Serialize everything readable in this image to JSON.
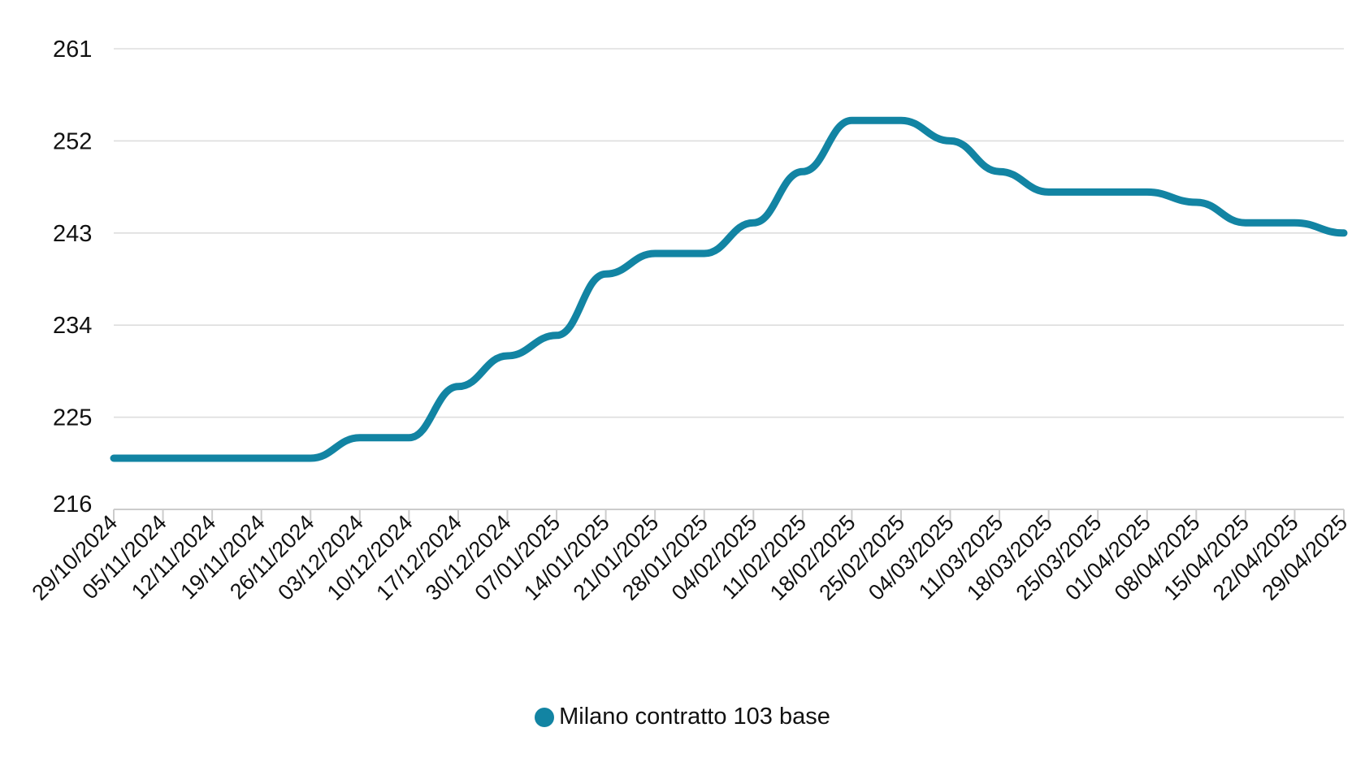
{
  "colors": {
    "series": "#1284a3"
  },
  "legend": {
    "label": "Milano contratto 103 base",
    "placement": "bottom-center"
  },
  "chart_data": {
    "type": "line",
    "title": "",
    "xlabel": "",
    "ylabel": "",
    "ylim": [
      216,
      261
    ],
    "yticks": [
      "261",
      "252",
      "243",
      "234",
      "225",
      "216"
    ],
    "grid": true,
    "categories": [
      "29/10/2024",
      "05/11/2024",
      "12/11/2024",
      "19/11/2024",
      "26/11/2024",
      "03/12/2024",
      "10/12/2024",
      "17/12/2024",
      "30/12/2024",
      "07/01/2025",
      "14/01/2025",
      "21/01/2025",
      "28/01/2025",
      "04/02/2025",
      "11/02/2025",
      "18/02/2025",
      "25/02/2025",
      "04/03/2025",
      "11/03/2025",
      "18/03/2025",
      "25/03/2025",
      "01/04/2025",
      "08/04/2025",
      "15/04/2025",
      "22/04/2025",
      "29/04/2025"
    ],
    "series": [
      {
        "name": "Milano contratto 103 base",
        "values": [
          221,
          221,
          221,
          221,
          221,
          223,
          223,
          228,
          231,
          233,
          239,
          241,
          241,
          244,
          249,
          254,
          254,
          252,
          249,
          247,
          247,
          247,
          246,
          244,
          244,
          243
        ]
      }
    ]
  }
}
